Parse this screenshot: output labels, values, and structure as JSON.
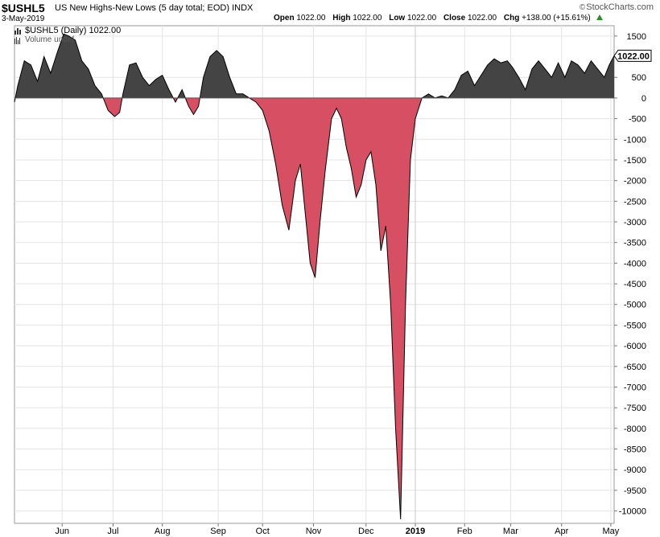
{
  "header": {
    "symbol": "$USHL5",
    "description": "US New Highs-New Lows (5 day total; EOD)",
    "exchange": "INDX",
    "date": "3-May-2019",
    "open_label": "Open",
    "open": "1022.00",
    "high_label": "High",
    "high": "1022.00",
    "low_label": "Low",
    "low": "1022.00",
    "close_label": "Close",
    "close": "1022.00",
    "chg_label": "Chg",
    "chg": "+138.00 (+15.61%)",
    "brand": "StockCharts.com"
  },
  "legend": {
    "series_label": "$USHL5 (Daily) 1022.00",
    "volume_label": "Volume undef"
  },
  "colors": {
    "positive_fill": "#444444",
    "negative_fill": "#d64f63",
    "line": "#000000",
    "grid": "#e3e3e3",
    "price_tag_bg": "#ffffff"
  },
  "chart_data": {
    "type": "area",
    "title": "$USHL5 (Daily) 1022.00",
    "ylim": [
      -10300,
      1750
    ],
    "y_ticks": [
      1500,
      500,
      0,
      -500,
      -1000,
      -1500,
      -2000,
      -2500,
      -3000,
      -3500,
      -4000,
      -4500,
      -5000,
      -5500,
      -6000,
      -6500,
      -7000,
      -7500,
      -8000,
      -8500,
      -9000,
      -9500,
      -10000
    ],
    "y_tick_labels": [
      "1500",
      "500",
      "0",
      "-500",
      "-1000",
      "-1500",
      "-2000",
      "-2500",
      "-3000",
      "-3500",
      "-4000",
      "-4500",
      "-5000",
      "-5500",
      "-6000",
      "-6500",
      "-7000",
      "-7500",
      "-8000",
      "-8500",
      "-9000",
      "-9500",
      "-10000"
    ],
    "x_domain": [
      "2018-05-03",
      "2019-05-03"
    ],
    "x_ticks": [
      {
        "date": "2018-06-01",
        "label": "Jun",
        "bold": false
      },
      {
        "date": "2018-07-02",
        "label": "Jul",
        "bold": false
      },
      {
        "date": "2018-08-01",
        "label": "Aug",
        "bold": false
      },
      {
        "date": "2018-09-04",
        "label": "Sep",
        "bold": false
      },
      {
        "date": "2018-10-01",
        "label": "Oct",
        "bold": false
      },
      {
        "date": "2018-11-01",
        "label": "Nov",
        "bold": false
      },
      {
        "date": "2018-12-03",
        "label": "Dec",
        "bold": false
      },
      {
        "date": "2019-01-02",
        "label": "2019",
        "bold": true
      },
      {
        "date": "2019-02-01",
        "label": "Feb",
        "bold": false
      },
      {
        "date": "2019-03-01",
        "label": "Mar",
        "bold": false
      },
      {
        "date": "2019-04-01",
        "label": "Apr",
        "bold": false
      },
      {
        "date": "2019-05-01",
        "label": "May",
        "bold": false
      }
    ],
    "grid": true,
    "last_value_label": "1022.00",
    "series": [
      {
        "points": [
          [
            "2018-05-03",
            -100
          ],
          [
            "2018-05-05",
            300
          ],
          [
            "2018-05-09",
            900
          ],
          [
            "2018-05-13",
            800
          ],
          [
            "2018-05-17",
            400
          ],
          [
            "2018-05-21",
            1000
          ],
          [
            "2018-05-25",
            600
          ],
          [
            "2018-05-29",
            1100
          ],
          [
            "2018-06-02",
            1550
          ],
          [
            "2018-06-05",
            1500
          ],
          [
            "2018-06-09",
            1400
          ],
          [
            "2018-06-13",
            900
          ],
          [
            "2018-06-17",
            700
          ],
          [
            "2018-06-21",
            300
          ],
          [
            "2018-06-25",
            100
          ],
          [
            "2018-06-29",
            -300
          ],
          [
            "2018-07-03",
            -450
          ],
          [
            "2018-07-06",
            -350
          ],
          [
            "2018-07-08",
            100
          ],
          [
            "2018-07-12",
            800
          ],
          [
            "2018-07-16",
            850
          ],
          [
            "2018-07-20",
            500
          ],
          [
            "2018-07-24",
            300
          ],
          [
            "2018-07-28",
            450
          ],
          [
            "2018-08-01",
            550
          ],
          [
            "2018-08-05",
            200
          ],
          [
            "2018-08-09",
            -100
          ],
          [
            "2018-08-13",
            200
          ],
          [
            "2018-08-17",
            -200
          ],
          [
            "2018-08-20",
            -400
          ],
          [
            "2018-08-23",
            -200
          ],
          [
            "2018-08-26",
            500
          ],
          [
            "2018-08-30",
            1000
          ],
          [
            "2018-09-03",
            1150
          ],
          [
            "2018-09-07",
            1000
          ],
          [
            "2018-09-11",
            500
          ],
          [
            "2018-09-15",
            100
          ],
          [
            "2018-09-19",
            100
          ],
          [
            "2018-09-23",
            0
          ],
          [
            "2018-09-27",
            -100
          ],
          [
            "2018-10-01",
            -300
          ],
          [
            "2018-10-05",
            -800
          ],
          [
            "2018-10-09",
            -1600
          ],
          [
            "2018-10-13",
            -2600
          ],
          [
            "2018-10-17",
            -3200
          ],
          [
            "2018-10-21",
            -2000
          ],
          [
            "2018-10-24",
            -1600
          ],
          [
            "2018-10-27",
            -2800
          ],
          [
            "2018-10-30",
            -4000
          ],
          [
            "2018-11-02",
            -4350
          ],
          [
            "2018-11-05",
            -3000
          ],
          [
            "2018-11-08",
            -1800
          ],
          [
            "2018-11-12",
            -500
          ],
          [
            "2018-11-15",
            -250
          ],
          [
            "2018-11-18",
            -500
          ],
          [
            "2018-11-21",
            -1200
          ],
          [
            "2018-11-24",
            -1700
          ],
          [
            "2018-11-27",
            -2400
          ],
          [
            "2018-11-30",
            -2100
          ],
          [
            "2018-12-03",
            -1500
          ],
          [
            "2018-12-06",
            -1300
          ],
          [
            "2018-12-09",
            -2100
          ],
          [
            "2018-12-12",
            -3700
          ],
          [
            "2018-12-15",
            -3100
          ],
          [
            "2018-12-18",
            -5000
          ],
          [
            "2018-12-21",
            -8000
          ],
          [
            "2018-12-24",
            -10200
          ],
          [
            "2018-12-27",
            -5000
          ],
          [
            "2018-12-30",
            -1500
          ],
          [
            "2019-01-02",
            -500
          ],
          [
            "2019-01-06",
            0
          ],
          [
            "2019-01-10",
            100
          ],
          [
            "2019-01-14",
            0
          ],
          [
            "2019-01-18",
            50
          ],
          [
            "2019-01-22",
            0
          ],
          [
            "2019-01-26",
            200
          ],
          [
            "2019-01-30",
            550
          ],
          [
            "2019-02-03",
            650
          ],
          [
            "2019-02-07",
            300
          ],
          [
            "2019-02-11",
            550
          ],
          [
            "2019-02-15",
            800
          ],
          [
            "2019-02-19",
            950
          ],
          [
            "2019-02-23",
            850
          ],
          [
            "2019-02-27",
            900
          ],
          [
            "2019-03-02",
            750
          ],
          [
            "2019-03-06",
            500
          ],
          [
            "2019-03-10",
            200
          ],
          [
            "2019-03-14",
            700
          ],
          [
            "2019-03-18",
            900
          ],
          [
            "2019-03-22",
            700
          ],
          [
            "2019-03-26",
            500
          ],
          [
            "2019-03-30",
            850
          ],
          [
            "2019-04-03",
            500
          ],
          [
            "2019-04-07",
            900
          ],
          [
            "2019-04-11",
            800
          ],
          [
            "2019-04-15",
            600
          ],
          [
            "2019-04-19",
            900
          ],
          [
            "2019-04-23",
            700
          ],
          [
            "2019-04-27",
            500
          ],
          [
            "2019-04-30",
            800
          ],
          [
            "2019-05-03",
            1022
          ]
        ]
      }
    ]
  }
}
